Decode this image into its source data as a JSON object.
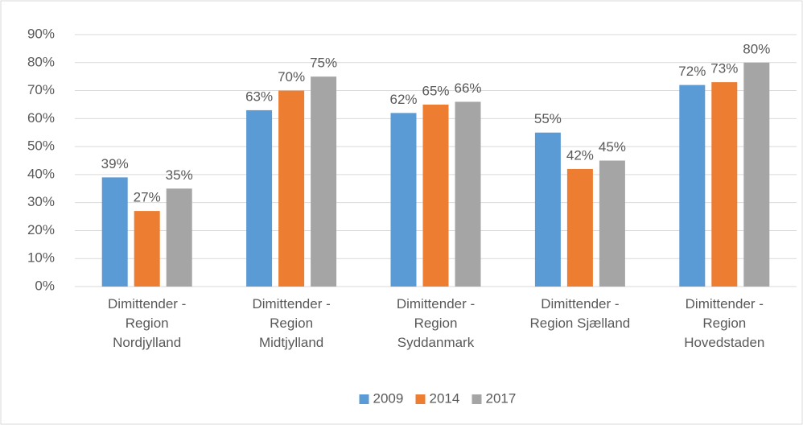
{
  "chart_data": {
    "type": "bar",
    "categories": [
      "Dimittender - Region Nordjylland",
      "Dimittender - Region Midtjylland",
      "Dimittender - Region Syddanmark",
      "Dimittender - Region Sjælland",
      "Dimittender - Region Hovedstaden"
    ],
    "series": [
      {
        "name": "2009",
        "color": "#5b9bd5",
        "values": [
          39,
          63,
          62,
          55,
          72
        ],
        "value_labels": [
          "39%",
          "63%",
          "62%",
          "55%",
          "72%"
        ]
      },
      {
        "name": "2014",
        "color": "#ed7d31",
        "values": [
          27,
          70,
          65,
          42,
          73
        ],
        "value_labels": [
          "27%",
          "70%",
          "65%",
          "42%",
          "73%"
        ]
      },
      {
        "name": "2017",
        "color": "#a5a5a5",
        "values": [
          35,
          75,
          66,
          45,
          80
        ],
        "value_labels": [
          "35%",
          "75%",
          "66%",
          "45%",
          "80%"
        ]
      }
    ],
    "ylim": [
      0,
      90
    ],
    "yticks": [
      {
        "value": 0,
        "label": "0%"
      },
      {
        "value": 10,
        "label": "10%"
      },
      {
        "value": 20,
        "label": "20%"
      },
      {
        "value": 30,
        "label": "30%"
      },
      {
        "value": 40,
        "label": "40%"
      },
      {
        "value": 50,
        "label": "50%"
      },
      {
        "value": 60,
        "label": "60%"
      },
      {
        "value": 70,
        "label": "70%"
      },
      {
        "value": 80,
        "label": "80%"
      },
      {
        "value": 90,
        "label": "90%"
      }
    ],
    "grid": true,
    "legend": "bottom"
  }
}
